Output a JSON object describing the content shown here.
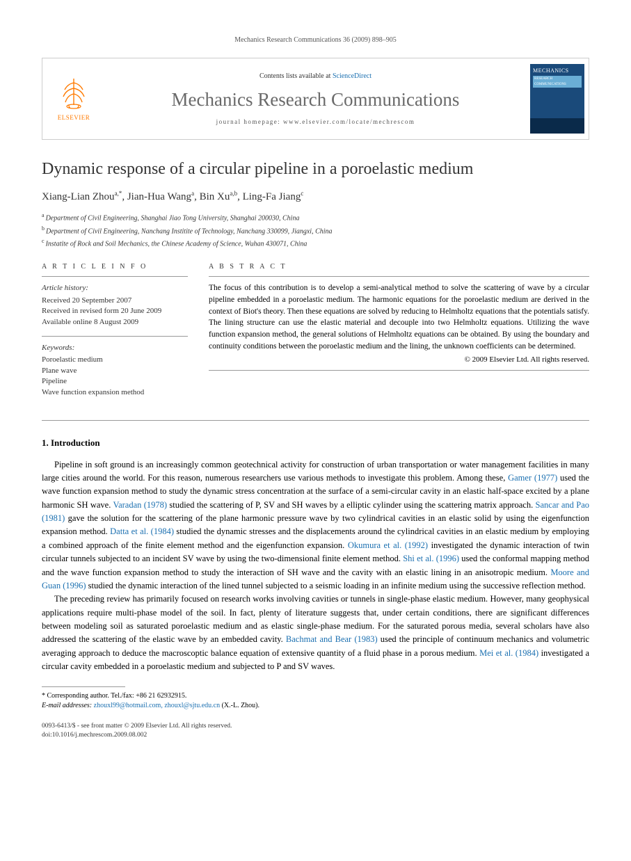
{
  "running_header": "Mechanics Research Communications 36 (2009) 898–905",
  "banner": {
    "publisher": "ELSEVIER",
    "contents_prefix": "Contents lists available at ",
    "contents_link": "ScienceDirect",
    "journal_name": "Mechanics Research Communications",
    "homepage_label": "journal homepage: www.elsevier.com/locate/mechrescom",
    "cover_title": "MECHANICS",
    "cover_sub": "RESEARCH COMMUNICATIONS"
  },
  "article": {
    "title": "Dynamic response of a circular pipeline in a poroelastic medium",
    "authors_html": "Xiang-Lian Zhou<sup>a,*</sup>, Jian-Hua Wang<sup>a</sup>, Bin Xu<sup>a,b</sup>, Ling-Fa Jiang<sup>c</sup>",
    "affiliations": [
      {
        "sup": "a",
        "text": "Department of Civil Engineering, Shanghai Jiao Tong University, Shanghai 200030, China"
      },
      {
        "sup": "b",
        "text": "Department of Civil Engineering, Nanchang Institite of Technology, Nanchang 330099, Jiangxi, China"
      },
      {
        "sup": "c",
        "text": "Instatite of Rock and Soil Mechanics, the Chinese Academy of Science, Wuhan 430071, China"
      }
    ]
  },
  "info": {
    "heading": "A R T I C L E   I N F O",
    "history_heading": "Article history:",
    "history_lines": [
      "Received 20 September 2007",
      "Received in revised form 20 June 2009",
      "Available online 8 August 2009"
    ],
    "keywords_heading": "Keywords:",
    "keywords": [
      "Poroelastic medium",
      "Plane wave",
      "Pipeline",
      "Wave function expansion method"
    ]
  },
  "abstract": {
    "heading": "A B S T R A C T",
    "text": "The focus of this contribution is to develop a semi-analytical method to solve the scattering of wave by a circular pipeline embedded in a poroelastic medium. The harmonic equations for the poroelastic medium are derived in the context of Biot's theory. Then these equations are solved by reducing to Helmholtz equations that the potentials satisfy. The lining structure can use the elastic material and decouple into two Helmholtz equations. Utilizing the wave function expansion method, the general solutions of Helmholtz equations can be obtained. By using the boundary and continuity conditions between the poroelastic medium and the lining, the unknown coefficients can be determined.",
    "copyright": "© 2009 Elsevier Ltd. All rights reserved."
  },
  "section1": {
    "heading": "1. Introduction",
    "para1_parts": [
      "Pipeline in soft ground is an increasingly common geotechnical activity for construction of urban transportation or water management facilities in many large cities around the world. For this reason, numerous researchers use various methods to investigate this problem. Among these, ",
      " used the wave function expansion method to study the dynamic stress concentration at the surface of a semi-circular cavity in an elastic half-space excited by a plane harmonic SH wave. ",
      " studied the scattering of P, SV and SH waves by a elliptic cylinder using the scattering matrix approach. ",
      " gave the solution for the scattering of the plane harmonic pressure wave by two cylindrical cavities in an elastic solid by using the eigenfunction expansion method. ",
      " studied the dynamic stresses and the displacements around the cylindrical cavities in an elastic medium by employing a combined approach of the finite element method and the eigenfunction expansion. ",
      " investigated the dynamic interaction of twin circular tunnels subjected to an incident SV wave by using the two-dimensional finite element method. ",
      " used the conformal mapping method and the wave function expansion method to study the interaction of SH wave and the cavity with an elastic lining in an anisotropic medium. ",
      " studied the dynamic interaction of the lined tunnel subjected to a seismic loading in an infinite medium using the successive reflection method."
    ],
    "para1_refs": [
      "Gamer (1977)",
      "Varadan (1978)",
      "Sancar and Pao (1981)",
      "Datta et al. (1984)",
      "Okumura et al. (1992)",
      "Shi et al. (1996)",
      "Moore and Guan (1996)"
    ],
    "para2_parts": [
      "The preceding review has primarily focused on research works involving cavities or tunnels in single-phase elastic medium. However, many geophysical applications require multi-phase model of the soil. In fact, plenty of literature suggests that, under certain conditions, there are significant differences between modeling soil as saturated poroelastic medium and as elastic single-phase medium. For the saturated porous media, several scholars have also addressed the scattering of the elastic wave by an embedded cavity. ",
      " used the principle of continuum mechanics and volumetric averaging approach to deduce the macroscoptic balance equation of extensive quantity of a fluid phase in a porous medium. ",
      " investigated a circular cavity embedded in a poroelastic medium and subjected to P and SV waves."
    ],
    "para2_refs": [
      "Bachmat and Bear (1983)",
      "Mei et al. (1984)"
    ]
  },
  "footnote": {
    "corr": "* Corresponding author. Tel./fax: +86 21 62932915.",
    "email_label": "E-mail addresses:",
    "emails": "zhouxl99@hotmail.com, zhouxl@sjtu.edu.cn",
    "email_suffix": " (X.-L. Zhou)."
  },
  "bottom": {
    "line1": "0093-6413/$ - see front matter © 2009 Elsevier Ltd. All rights reserved.",
    "line2": "doi:10.1016/j.mechrescom.2009.08.002"
  },
  "colors": {
    "link": "#1a6fb0",
    "elsevier_orange": "#ff7a00",
    "journal_grey": "#6a6a6a",
    "cover_bg": "#1a4a7a"
  }
}
